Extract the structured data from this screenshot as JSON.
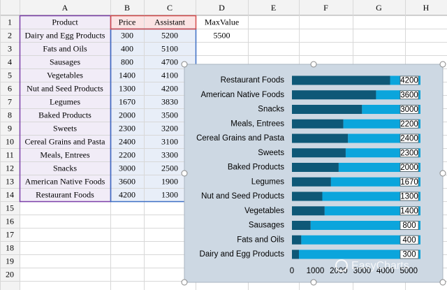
{
  "sheet": {
    "columns": [
      "A",
      "B",
      "C",
      "D",
      "E",
      "F",
      "G",
      "H"
    ],
    "rows": [
      1,
      2,
      3,
      4,
      5,
      6,
      7,
      8,
      9,
      10,
      11,
      12,
      13,
      14,
      15,
      16,
      17,
      18,
      19,
      20
    ],
    "cells": [
      [
        "Product",
        "Price",
        "Assistant",
        "MaxValue"
      ],
      [
        "Dairy and Egg Products",
        300,
        5200,
        5500
      ],
      [
        "Fats and Oils",
        400,
        5100
      ],
      [
        "Sausages",
        800,
        4700
      ],
      [
        "Vegetables",
        1400,
        4100
      ],
      [
        "Nut and Seed Products",
        1300,
        4200
      ],
      [
        "Legumes",
        1670,
        3830
      ],
      [
        "Baked Products",
        2000,
        3500
      ],
      [
        "Sweets",
        2300,
        3200
      ],
      [
        "Cereal Grains and Pasta",
        2400,
        3100
      ],
      [
        "Meals, Entrees",
        2200,
        3300
      ],
      [
        "Snacks",
        3000,
        2500
      ],
      [
        "American  Native Foods",
        3600,
        1900
      ],
      [
        "Restaurant Foods",
        4200,
        1300
      ]
    ]
  },
  "chart_data": {
    "type": "stacked-barh",
    "categories": [
      "Dairy and Egg Products",
      "Fats and Oils",
      "Sausages",
      "Vegetables",
      "Nut and Seed Products",
      "Legumes",
      "Baked Products",
      "Sweets",
      "Cereal Grains and Pasta",
      "Meals, Entrees",
      "Snacks",
      "American  Native Foods",
      "Restaurant Foods"
    ],
    "series": [
      {
        "name": "Price",
        "color": "#0e5877",
        "values": [
          300,
          400,
          800,
          1400,
          1300,
          1670,
          2000,
          2300,
          2400,
          2200,
          3000,
          3600,
          4200
        ]
      },
      {
        "name": "Assistant",
        "color": "#0ba5dc",
        "values": [
          5200,
          5100,
          4700,
          4100,
          4200,
          3830,
          3500,
          3200,
          3100,
          3300,
          2500,
          1900,
          1300
        ]
      }
    ],
    "xlim": [
      0,
      5500
    ],
    "xticks": [
      0,
      1000,
      2000,
      3000,
      4000,
      5000
    ],
    "grid": false
  },
  "watermark": "EasyCharts"
}
